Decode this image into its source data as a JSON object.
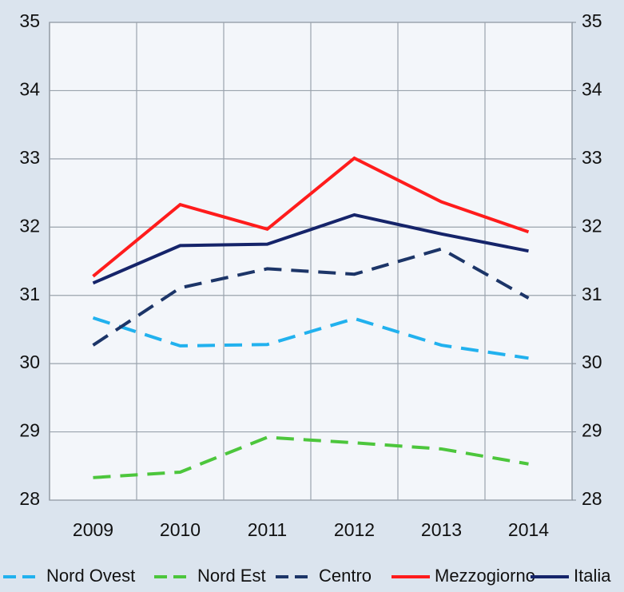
{
  "chart_data": {
    "type": "line",
    "categories": [
      "2009",
      "2010",
      "2011",
      "2012",
      "2013",
      "2014"
    ],
    "series": [
      {
        "name": "Nord Ovest",
        "color": "#21b1ee",
        "dash": "dashed",
        "values": [
          30.67,
          30.26,
          30.28,
          30.66,
          30.27,
          30.08
        ]
      },
      {
        "name": "Nord Est",
        "color": "#4cc63c",
        "dash": "dashed",
        "values": [
          28.33,
          28.41,
          28.92,
          28.84,
          28.75,
          28.53
        ]
      },
      {
        "name": "Centro",
        "color": "#1c3568",
        "dash": "dashed",
        "values": [
          30.27,
          31.11,
          31.39,
          31.31,
          31.68,
          30.96
        ]
      },
      {
        "name": "Mezzogiorno",
        "color": "#ff1c1c",
        "dash": "solid",
        "values": [
          31.28,
          32.33,
          31.97,
          33.01,
          32.37,
          31.93
        ]
      },
      {
        "name": "Italia",
        "color": "#15246a",
        "dash": "solid",
        "values": [
          31.18,
          31.73,
          31.75,
          32.18,
          31.9,
          31.65
        ]
      }
    ],
    "ylim": [
      28,
      35
    ],
    "yticks": [
      28,
      29,
      30,
      31,
      32,
      33,
      34,
      35
    ],
    "y2lim": [
      28,
      35
    ],
    "y2ticks": [
      28,
      29,
      30,
      31,
      32,
      33,
      34,
      35
    ],
    "grid": true,
    "legend": "bottom"
  }
}
